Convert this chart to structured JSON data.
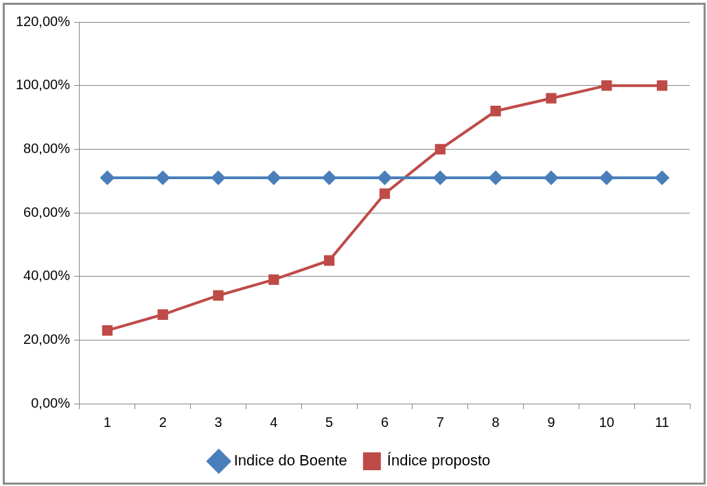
{
  "chart_data": {
    "type": "line",
    "categories": [
      "1",
      "2",
      "3",
      "4",
      "5",
      "6",
      "7",
      "8",
      "9",
      "10",
      "11"
    ],
    "series": [
      {
        "name": "Indice do Boente",
        "color": "#4a7ebb",
        "marker": "diamond",
        "values": [
          71,
          71,
          71,
          71,
          71,
          71,
          71,
          71,
          71,
          71,
          71
        ]
      },
      {
        "name": "Índice proposto",
        "color": "#be4b48",
        "marker": "square",
        "values": [
          23,
          28,
          34,
          39,
          45,
          66,
          80,
          92,
          96,
          100,
          100
        ]
      }
    ],
    "ylim": [
      0,
      120
    ],
    "yticks": [
      {
        "value": 0,
        "label": "0,00%"
      },
      {
        "value": 20,
        "label": "20,00%"
      },
      {
        "value": 40,
        "label": "40,00%"
      },
      {
        "value": 60,
        "label": "60,00%"
      },
      {
        "value": 80,
        "label": "80,00%"
      },
      {
        "value": 100,
        "label": "100,00%"
      },
      {
        "value": 120,
        "label": "120,00%"
      }
    ],
    "grid": "y",
    "legend": "bottom",
    "line_style": "solid"
  }
}
